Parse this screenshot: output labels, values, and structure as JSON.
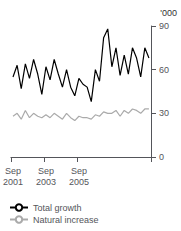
{
  "chart_data": {
    "type": "line",
    "categories": [
      "Sep\n2001",
      null,
      null,
      null,
      null,
      null,
      null,
      null,
      "Sep\n2003",
      null,
      null,
      null,
      null,
      null,
      null,
      null,
      "Sep\n2005",
      null,
      null,
      null,
      null,
      null,
      null,
      null,
      null,
      null,
      null,
      null,
      null,
      null,
      null,
      null,
      null,
      null
    ],
    "series": [
      {
        "name": "Total growth",
        "color": "#000000",
        "values": [
          55,
          63,
          47,
          64,
          54,
          67,
          57,
          43,
          62,
          53,
          67,
          57,
          48,
          60,
          48,
          42,
          54,
          50,
          48,
          38,
          60,
          52,
          82,
          88,
          62,
          75,
          56,
          70,
          57,
          75,
          68,
          55,
          75,
          68
        ]
      },
      {
        "name": "Natural increase",
        "color": "#aaaaaa",
        "values": [
          28,
          30,
          26,
          32,
          27,
          30,
          28,
          27,
          29,
          27,
          30,
          28,
          26,
          30,
          27,
          25,
          28,
          27,
          27,
          26,
          29,
          28,
          31,
          30,
          30,
          32,
          28,
          32,
          30,
          33,
          32,
          30,
          33,
          33
        ]
      }
    ],
    "ylim": [
      0,
      90
    ],
    "yticks": [
      0,
      30,
      60,
      90
    ],
    "annotation": "'000",
    "grid": false,
    "legend": "lower left"
  }
}
